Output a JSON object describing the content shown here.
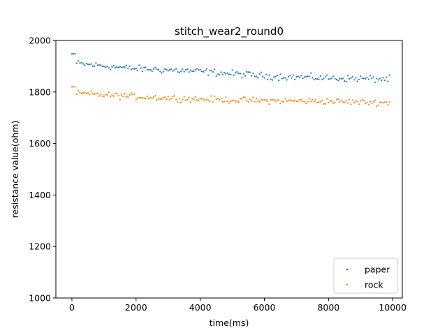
{
  "chart_data": {
    "type": "scatter",
    "title": "stitch_wear2_round0",
    "xlabel": "time(ms)",
    "ylabel": "resistance value(ohm)",
    "xlim": [
      -500,
      10300
    ],
    "ylim": [
      1000,
      2000
    ],
    "xticks": [
      0,
      2000,
      4000,
      6000,
      8000,
      10000
    ],
    "yticks": [
      1000,
      1200,
      1400,
      1600,
      1800,
      2000
    ],
    "xtick_labels": [
      "0",
      "2000",
      "4000",
      "6000",
      "8000",
      "10000"
    ],
    "ytick_labels": [
      "1000",
      "1200",
      "1400",
      "1600",
      "1800",
      "2000"
    ],
    "grid": false,
    "legend": "bottom-right",
    "series": [
      {
        "name": "paper",
        "color": "#1f77b4",
        "x_start": 0,
        "x_step": 50,
        "count": 199,
        "start_value": 1948,
        "initial_points": 3,
        "trend": [
          [
            0,
            1912
          ],
          [
            2000,
            1890
          ],
          [
            4000,
            1880
          ],
          [
            6000,
            1862
          ],
          [
            8000,
            1854
          ],
          [
            9900,
            1850
          ]
        ],
        "noise": 10
      },
      {
        "name": "rock",
        "color": "#ff7f0e",
        "x_start": 0,
        "x_step": 50,
        "count": 199,
        "start_value": 1820,
        "initial_points": 3,
        "trend": [
          [
            0,
            1795
          ],
          [
            2000,
            1782
          ],
          [
            4000,
            1772
          ],
          [
            6000,
            1766
          ],
          [
            8000,
            1764
          ],
          [
            9900,
            1758
          ]
        ],
        "noise": 9
      }
    ]
  }
}
